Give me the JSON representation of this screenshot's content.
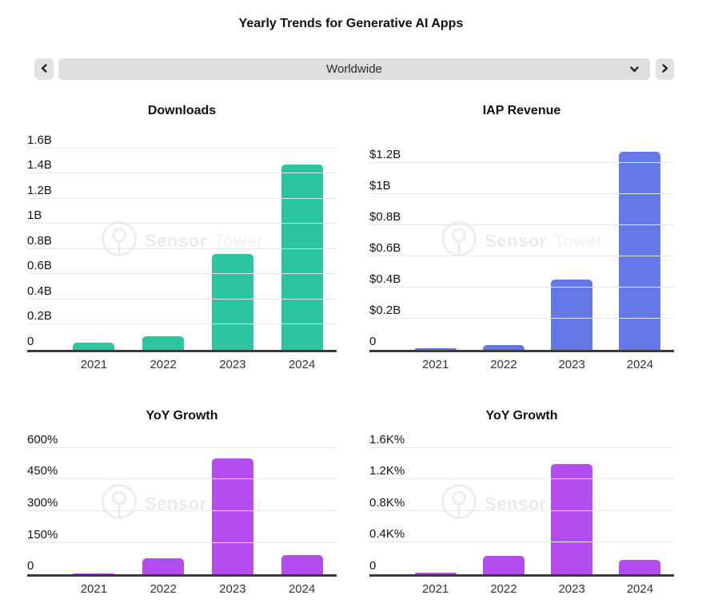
{
  "page": {
    "title": "Yearly Trends for Generative AI Apps"
  },
  "selector": {
    "value": "Worldwide",
    "icons": {
      "prev": "chevron-left-icon",
      "expand": "chevron-down-icon",
      "next": "chevron-right-icon"
    }
  },
  "watermark": {
    "brand_bold": "Sensor",
    "brand_light": "Tower",
    "icon": "sensor-tower-logo-icon"
  },
  "chart_data": [
    {
      "id": "downloads",
      "type": "bar",
      "title": "Downloads",
      "categories": [
        "2021",
        "2022",
        "2023",
        "2024"
      ],
      "values": [
        0.06,
        0.11,
        0.76,
        1.47
      ],
      "value_unit": "billions",
      "bar_color": "#2cc5a2",
      "ylim": [
        0,
        1.73
      ],
      "grid": true,
      "legend": "none",
      "yticks": [
        {
          "label": "1.6B",
          "value": 1.6
        },
        {
          "label": "1.4B",
          "value": 1.4
        },
        {
          "label": "1.2B",
          "value": 1.2
        },
        {
          "label": "1B",
          "value": 1.0
        },
        {
          "label": "0.8B",
          "value": 0.8
        },
        {
          "label": "0.6B",
          "value": 0.6
        },
        {
          "label": "0.4B",
          "value": 0.4
        },
        {
          "label": "0.2B",
          "value": 0.2
        },
        {
          "label": "0",
          "value": 0
        }
      ]
    },
    {
      "id": "iap-revenue",
      "type": "bar",
      "title": "IAP Revenue",
      "categories": [
        "2021",
        "2022",
        "2023",
        "2024"
      ],
      "values": [
        0.01,
        0.03,
        0.45,
        1.27
      ],
      "value_unit": "billions-usd",
      "bar_color": "#6478e8",
      "ylim": [
        0,
        1.4
      ],
      "grid": true,
      "legend": "none",
      "yticks": [
        {
          "label": "$1.2B",
          "value": 1.2
        },
        {
          "label": "$1B",
          "value": 1.0
        },
        {
          "label": "$0.8B",
          "value": 0.8
        },
        {
          "label": "$0.6B",
          "value": 0.6
        },
        {
          "label": "$0.4B",
          "value": 0.4
        },
        {
          "label": "$0.2B",
          "value": 0.2
        },
        {
          "label": "0",
          "value": 0
        }
      ]
    },
    {
      "id": "yoy-growth-downloads",
      "type": "bar",
      "title": "YoY Growth",
      "categories": [
        "2021",
        "2022",
        "2023",
        "2024"
      ],
      "values": [
        5,
        75,
        550,
        93
      ],
      "value_unit": "percent",
      "bar_color": "#b44cf0",
      "ylim": [
        0,
        672
      ],
      "grid": true,
      "legend": "none",
      "yticks": [
        {
          "label": "600%",
          "value": 600
        },
        {
          "label": "450%",
          "value": 450
        },
        {
          "label": "300%",
          "value": 300
        },
        {
          "label": "150%",
          "value": 150
        },
        {
          "label": "0",
          "value": 0
        }
      ]
    },
    {
      "id": "yoy-growth-revenue",
      "type": "bar",
      "title": "YoY Growth",
      "categories": [
        "2021",
        "2022",
        "2023",
        "2024"
      ],
      "values": [
        20,
        230,
        1400,
        180
      ],
      "value_unit": "percent",
      "bar_color": "#b44cf0",
      "ylim": [
        0,
        1790
      ],
      "grid": true,
      "legend": "none",
      "yticks": [
        {
          "label": "1.6K%",
          "value": 1600
        },
        {
          "label": "1.2K%",
          "value": 1200
        },
        {
          "label": "0.8K%",
          "value": 800
        },
        {
          "label": "0.4K%",
          "value": 400
        },
        {
          "label": "0",
          "value": 0
        }
      ]
    }
  ]
}
